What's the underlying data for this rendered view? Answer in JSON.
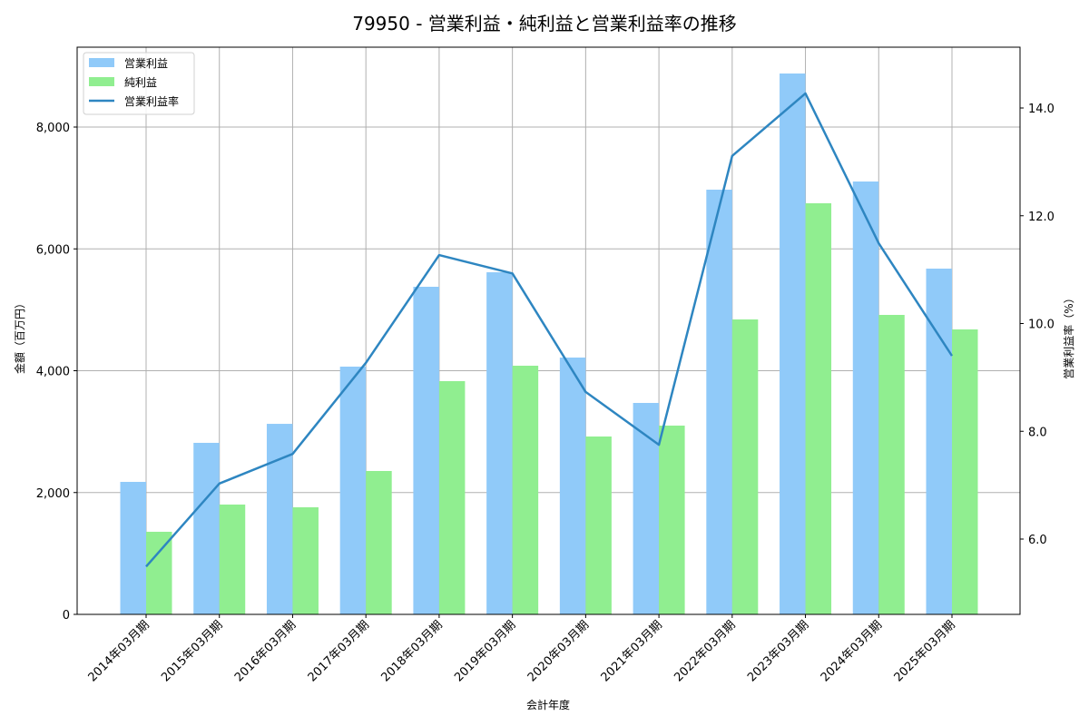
{
  "chart_data": {
    "type": "bar",
    "title": "79950 - 営業利益・純利益と営業利益率の推移",
    "xlabel": "会計年度",
    "ylabel": "金額（百万円）",
    "y2label": "営業利益率（%）",
    "ylim": [
      0,
      9300
    ],
    "y2lim": [
      4.7,
      15.2
    ],
    "yticks": [
      0,
      2000,
      4000,
      6000,
      8000
    ],
    "ytick_labels": [
      "0",
      "2,000",
      "4,000",
      "6,000",
      "8,000"
    ],
    "y2ticks": [
      6.0,
      8.0,
      10.0,
      12.0,
      14.0
    ],
    "y2tick_labels": [
      "6.0",
      "8.0",
      "10.0",
      "12.0",
      "14.0"
    ],
    "grid": true,
    "legend_position": "upper left",
    "categories": [
      "2014年03月期",
      "2015年03月期",
      "2016年03月期",
      "2017年03月期",
      "2018年03月期",
      "2019年03月期",
      "2020年03月期",
      "2021年03月期",
      "2022年03月期",
      "2023年03月期",
      "2024年03月期",
      "2025年03月期"
    ],
    "series": [
      {
        "name": "営業利益",
        "type": "bar",
        "axis": "left",
        "color": "#90caf9",
        "values": [
          2175,
          2816,
          3128,
          4067,
          5378,
          5616,
          4216,
          3471,
          6972,
          8879,
          7106,
          5676
        ]
      },
      {
        "name": "純利益",
        "type": "bar",
        "axis": "left",
        "color": "#90ee90",
        "values": [
          1356,
          1803,
          1758,
          2354,
          3829,
          4082,
          2920,
          3099,
          4842,
          6749,
          4916,
          4678
        ]
      },
      {
        "name": "営業利益率",
        "type": "line",
        "axis": "right",
        "color": "#2e86c1",
        "values": [
          5.49,
          7.03,
          7.58,
          9.27,
          11.27,
          10.93,
          8.73,
          7.75,
          13.11,
          14.27,
          11.49,
          9.4
        ]
      }
    ]
  }
}
